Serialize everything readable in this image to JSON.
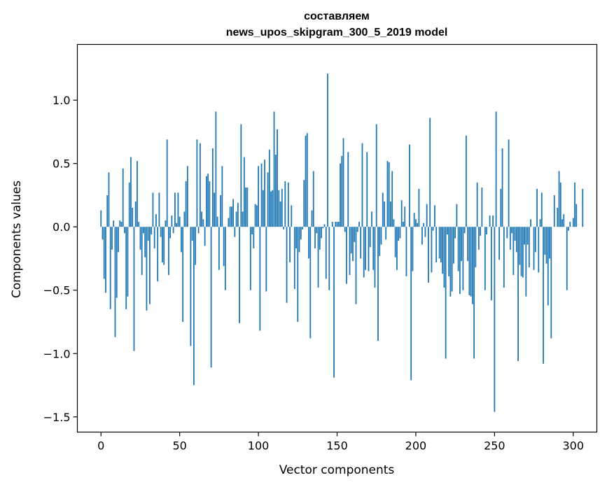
{
  "chart_data": {
    "type": "bar",
    "title_line1": "составляем",
    "title_line2": "news_upos_skipgram_300_5_2019 model",
    "xlabel": "Vector components",
    "ylabel": "Components values",
    "xlim": [
      -15,
      315
    ],
    "ylim": [
      -1.62,
      1.44
    ],
    "xticks": [
      0,
      50,
      100,
      150,
      200,
      250,
      300
    ],
    "xtick_labels": [
      "0",
      "50",
      "100",
      "150",
      "200",
      "250",
      "300"
    ],
    "yticks": [
      -1.5,
      -1.0,
      -0.5,
      0.0,
      0.5,
      1.0
    ],
    "ytick_labels": [
      "−1.5",
      "−1.0",
      "−0.5",
      "0.0",
      "0.5",
      "1.0"
    ],
    "bar_color": "#1f77b4",
    "grid": false,
    "values": [
      0.13,
      -0.1,
      -0.41,
      -0.52,
      0.25,
      0.43,
      -0.65,
      -0.18,
      0.05,
      -0.87,
      -0.56,
      -0.2,
      0.05,
      0.04,
      0.46,
      -0.05,
      -0.65,
      -0.55,
      0.35,
      0.55,
      0.15,
      -0.98,
      0.2,
      0.52,
      0.04,
      -0.18,
      -0.38,
      -0.05,
      -0.24,
      -0.66,
      -0.11,
      -0.61,
      -0.06,
      0.27,
      -0.17,
      0.1,
      -0.43,
      0.27,
      -0.08,
      -0.28,
      -0.3,
      0.05,
      0.69,
      -0.38,
      -0.09,
      0.09,
      -0.05,
      0.27,
      0.03,
      0.27,
      0.08,
      -0.2,
      -0.75,
      0.12,
      0.36,
      0.48,
      0.0,
      -0.94,
      -0.11,
      -1.25,
      -0.3,
      0.69,
      -0.05,
      0.66,
      0.12,
      0.06,
      -0.15,
      0.4,
      0.42,
      0.36,
      -1.11,
      0.62,
      0.27,
      0.91,
      0.08,
      -0.34,
      0.25,
      0.48,
      -0.31,
      -0.5,
      0.0,
      0.07,
      0.16,
      0.16,
      0.22,
      -0.08,
      0.12,
      0.19,
      -0.76,
      0.81,
      0.12,
      0.55,
      0.31,
      0.31,
      0.0,
      -0.5,
      -0.06,
      -0.17,
      0.18,
      0.17,
      0.48,
      -0.82,
      0.5,
      0.29,
      0.53,
      -0.51,
      0.43,
      0.61,
      0.28,
      0.29,
      0.91,
      0.57,
      0.77,
      0.29,
      0.2,
      0.3,
      -0.02,
      0.36,
      -0.6,
      0.35,
      -0.28,
      0.17,
      0.0,
      -0.49,
      -0.17,
      -0.75,
      -0.2,
      -0.1,
      -0.02,
      0.37,
      0.72,
      0.74,
      -0.25,
      -0.88,
      0.13,
      0.44,
      -0.17,
      -0.05,
      -0.48,
      -0.18,
      -0.09,
      -0.01,
      0.02,
      -0.41,
      1.21,
      -0.5,
      0.0,
      0.04,
      -1.19,
      0.04,
      0.04,
      0.04,
      0.5,
      0.56,
      0.7,
      -0.04,
      -0.45,
      0.59,
      -0.38,
      -0.21,
      -0.27,
      -0.12,
      -0.61,
      -0.04,
      0.04,
      -0.25,
      0.66,
      -0.4,
      -0.34,
      0.59,
      -0.35,
      -0.16,
      0.12,
      -0.34,
      -0.48,
      0.81,
      -0.9,
      -0.23,
      -0.14,
      0.27,
      0.2,
      -0.1,
      0.52,
      0.51,
      0.2,
      0.44,
      0.06,
      -0.24,
      -0.34,
      -0.11,
      -0.09,
      0.21,
      0.04,
      0.16,
      -0.39,
      0.0,
      0.65,
      -1.21,
      -0.35,
      0.11,
      0.06,
      0.03,
      0.3,
      0.0,
      -0.14,
      0.03,
      -0.08,
      0.18,
      -0.44,
      0.86,
      -0.36,
      -0.03,
      0.17,
      -0.28,
      0.0,
      -0.25,
      -0.28,
      -0.37,
      -0.48,
      -1.04,
      -0.06,
      -0.39,
      -0.55,
      -0.51,
      -0.29,
      -0.09,
      0.18,
      -0.35,
      -0.53,
      -0.27,
      -0.5,
      -0.05,
      0.72,
      -0.27,
      -0.54,
      -0.55,
      -0.61,
      -1.04,
      -0.32,
      0.35,
      -0.18,
      -0.07,
      0.31,
      0.0,
      -0.5,
      -0.06,
      0.0,
      0.09,
      -0.58,
      0.09,
      -1.46,
      0.91,
      0.0,
      -0.26,
      0.3,
      0.62,
      -0.48,
      0.0,
      -0.09,
      0.69,
      -0.18,
      -0.05,
      -0.38,
      -0.11,
      -0.2,
      -1.06,
      -0.3,
      -0.39,
      -0.4,
      -0.14,
      -0.55,
      -0.14,
      -0.32,
      0.06,
      0.0,
      -0.34,
      -0.2,
      0.3,
      -0.36,
      0.06,
      0.27,
      -1.08,
      -0.22,
      -0.29,
      -0.62,
      -0.25,
      -0.88,
      0.0,
      0.25,
      0.0,
      0.15,
      0.44,
      0.35,
      0.06,
      0.1,
      0.0,
      -0.5,
      -0.03,
      0.04,
      0.0,
      0.07,
      0.35,
      0.18,
      0.0,
      0.0,
      0.0,
      0.3,
      0.0
    ]
  }
}
